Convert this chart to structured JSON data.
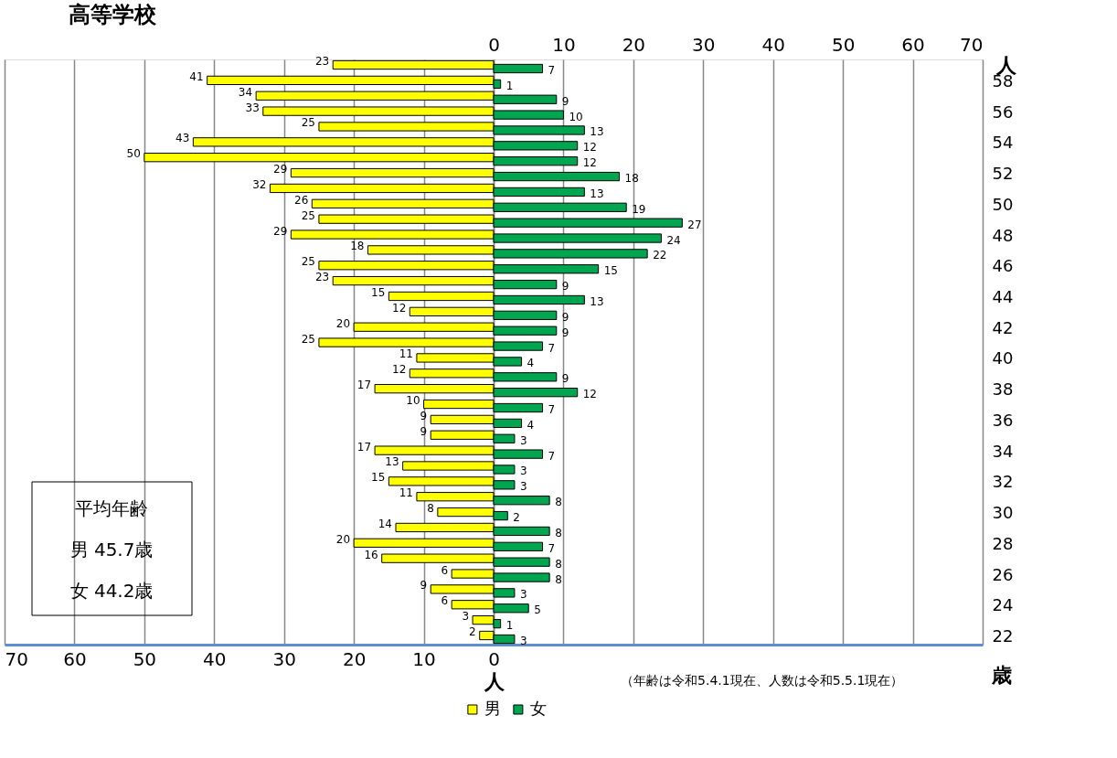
{
  "chart_data": {
    "type": "bar",
    "orientation": "horizontal",
    "title": "高等学校",
    "categories": [
      null,
      "58",
      null,
      "56",
      null,
      "54",
      null,
      "52",
      null,
      "50",
      null,
      "48",
      null,
      "46",
      null,
      "44",
      null,
      "42",
      null,
      "40",
      null,
      "38",
      null,
      "36",
      null,
      "34",
      null,
      "32",
      null,
      "30",
      null,
      "28",
      null,
      "26",
      null,
      "24",
      null,
      "22"
    ],
    "series": [
      {
        "name": "男",
        "color": "#ffff00",
        "values": [
          23,
          41,
          34,
          33,
          25,
          43,
          50,
          29,
          32,
          26,
          25,
          29,
          18,
          25,
          23,
          15,
          12,
          20,
          25,
          11,
          12,
          17,
          10,
          9,
          9,
          17,
          13,
          15,
          11,
          8,
          14,
          20,
          16,
          6,
          9,
          6,
          3,
          2
        ]
      },
      {
        "name": "女",
        "color": "#00a550",
        "axis": "x2",
        "values": [
          7,
          1,
          9,
          10,
          13,
          12,
          12,
          18,
          13,
          19,
          27,
          24,
          22,
          15,
          9,
          13,
          9,
          9,
          7,
          4,
          9,
          12,
          7,
          4,
          3,
          7,
          3,
          3,
          8,
          2,
          8,
          7,
          8,
          8,
          3,
          5,
          1,
          3
        ]
      }
    ],
    "xlim": [
      70,
      -70
    ],
    "xticks": [
      70,
      60,
      50,
      40,
      30,
      20,
      10,
      0
    ],
    "x2lim": [
      -70,
      70
    ],
    "x2ticks": [
      0,
      10,
      20,
      30,
      40,
      50,
      60,
      70
    ],
    "xlabel": "人",
    "x2label": "人",
    "ylabel": "歳",
    "data_labels": true,
    "grid": true,
    "legend": "bottom",
    "annotations": [
      "平均年齢",
      "男 45.7歳",
      "女 44.2歳",
      "（年齢は令和5.4.1現在、人数は令和5.5.1現在）"
    ]
  }
}
